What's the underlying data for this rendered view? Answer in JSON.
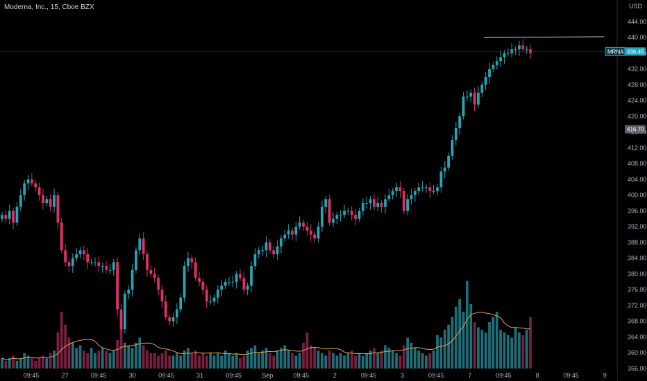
{
  "header": {
    "title": "Moderna, Inc., 15, Cboe BZX"
  },
  "axis": {
    "currency": "USD"
  },
  "colors": {
    "background": "#000000",
    "up": "#26a6b4",
    "down": "#e0306a",
    "vol_up": "#1f6f7a",
    "vol_down": "#7a1f40",
    "ma": "#e8a15a",
    "line": "#d1d4dc",
    "axis_text": "#b2b5be",
    "last_price_bg": "#22a7c2",
    "marker_bg": "#5d606b"
  },
  "markers": {
    "symbol": "MRNA",
    "last_price": "436.45",
    "price_marker": "416.70"
  },
  "chart_data": {
    "type": "candlestick",
    "title": "Moderna, Inc., 15, Cboe BZX",
    "y_ticks": [
      "444.00",
      "440.00",
      "436.00",
      "432.00",
      "428.00",
      "424.00",
      "420.00",
      "416.00",
      "412.00",
      "408.00",
      "404.00",
      "400.00",
      "396.00",
      "392.00",
      "388.00",
      "384.00",
      "380.00",
      "376.00",
      "372.00",
      "368.00",
      "364.00",
      "360.00",
      "356.00"
    ],
    "ylim": [
      356,
      446
    ],
    "x_ticks": [
      "09:45",
      "27",
      "09:45",
      "30",
      "09:45",
      "31",
      "09:45",
      "Sep",
      "09:45",
      "2",
      "09:45",
      "3",
      "09:45",
      "7",
      "09:45",
      "8",
      "09:45",
      "9"
    ],
    "last_price": 436.45,
    "marked_price": 416.7,
    "horizontal_line": {
      "from_price": 440.0,
      "to_price": 440.2
    },
    "closes": [
      395,
      394,
      396,
      393,
      397,
      400,
      403,
      404,
      403,
      402,
      400,
      398,
      399,
      397,
      400,
      393,
      386,
      383,
      382,
      384,
      385,
      386,
      385,
      383,
      383,
      383,
      382,
      382,
      381,
      381,
      383,
      371,
      366,
      375,
      376,
      381,
      386,
      389,
      385,
      381,
      380,
      379,
      376,
      373,
      369,
      368,
      369,
      371,
      374,
      382,
      384,
      383,
      379,
      378,
      376,
      373,
      373,
      374,
      376,
      377,
      378,
      378,
      378,
      380,
      379,
      376,
      377,
      382,
      385,
      386,
      386,
      388,
      386,
      385,
      387,
      389,
      390,
      391,
      390,
      392,
      393,
      392,
      391,
      390,
      389,
      392,
      397,
      399,
      393,
      394,
      395,
      395,
      396,
      396,
      395,
      394,
      396,
      398,
      398,
      399,
      397,
      398,
      397,
      399,
      400,
      401,
      402,
      401,
      396,
      399,
      400,
      401,
      402,
      402,
      402,
      401,
      401,
      402,
      406,
      407,
      410,
      414,
      417,
      420,
      425,
      425,
      426,
      423,
      426,
      428,
      430,
      432,
      433,
      434,
      435,
      436,
      436,
      437,
      437,
      438,
      437,
      437,
      436
    ],
    "volumes": [
      4,
      3,
      4,
      5,
      3,
      4,
      6,
      5,
      4,
      3,
      4,
      5,
      4,
      6,
      7,
      14,
      22,
      17,
      12,
      10,
      8,
      9,
      7,
      6,
      8,
      6,
      7,
      8,
      7,
      6,
      7,
      11,
      16,
      10,
      9,
      8,
      10,
      12,
      9,
      7,
      6,
      6,
      5,
      6,
      7,
      5,
      5,
      6,
      5,
      7,
      8,
      6,
      7,
      5,
      6,
      5,
      6,
      5,
      6,
      5,
      7,
      6,
      5,
      6,
      4,
      5,
      7,
      8,
      9,
      6,
      7,
      8,
      6,
      5,
      7,
      8,
      9,
      7,
      6,
      5,
      6,
      10,
      14,
      9,
      8,
      7,
      6,
      5,
      7,
      6,
      5,
      6,
      5,
      6,
      7,
      5,
      6,
      5,
      6,
      7,
      8,
      6,
      7,
      9,
      8,
      7,
      6,
      5,
      9,
      12,
      10,
      8,
      7,
      6,
      5,
      6,
      7,
      13,
      12,
      15,
      17,
      20,
      24,
      27,
      22,
      34,
      25,
      18,
      16,
      15,
      14,
      18,
      20,
      22,
      15,
      14,
      13,
      12,
      16,
      14,
      13,
      15,
      20
    ]
  }
}
